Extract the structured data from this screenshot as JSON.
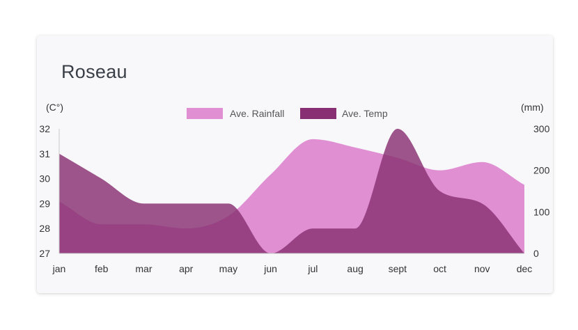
{
  "title": "Roseau",
  "chart_data": {
    "type": "area",
    "categories": [
      "jan",
      "feb",
      "mar",
      "apr",
      "may",
      "jun",
      "jul",
      "aug",
      "sept",
      "oct",
      "nov",
      "dec"
    ],
    "series": [
      {
        "name": "Ave. Rainfall",
        "axis": "right",
        "color": "#e08fd3",
        "values": [
          125,
          70,
          70,
          60,
          90,
          190,
          275,
          255,
          230,
          200,
          220,
          165
        ]
      },
      {
        "name": "Ave. Temp",
        "axis": "left",
        "color": "#872f72",
        "values": [
          31,
          30,
          29,
          29,
          29,
          27,
          28,
          28,
          32,
          29.5,
          29,
          27
        ]
      }
    ],
    "y_left": {
      "label": "(C°)",
      "min": 27,
      "max": 32,
      "ticks": [
        27,
        28,
        29,
        30,
        31,
        32
      ]
    },
    "y_right": {
      "label": "(mm)",
      "min": 0,
      "max": 300,
      "ticks": [
        0,
        100,
        200,
        300
      ]
    },
    "legend_position": "top-center",
    "grid": false
  }
}
